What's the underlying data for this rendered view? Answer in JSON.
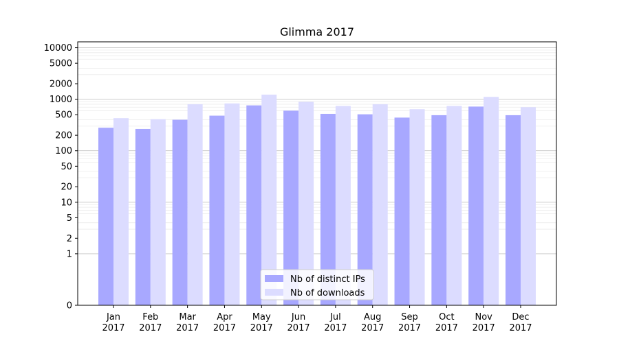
{
  "chart_data": {
    "type": "bar",
    "title": "Glimma 2017",
    "xlabel": "",
    "ylabel": "",
    "y_scale": "symlog",
    "ylim": [
      0,
      13000
    ],
    "y_ticks": [
      0,
      1,
      2,
      5,
      10,
      20,
      50,
      100,
      200,
      500,
      1000,
      2000,
      5000,
      10000
    ],
    "grid": "horizontal",
    "legend_position": "bottom-center",
    "categories": [
      [
        "Jan",
        "2017"
      ],
      [
        "Feb",
        "2017"
      ],
      [
        "Mar",
        "2017"
      ],
      [
        "Apr",
        "2017"
      ],
      [
        "May",
        "2017"
      ],
      [
        "Jun",
        "2017"
      ],
      [
        "Jul",
        "2017"
      ],
      [
        "Aug",
        "2017"
      ],
      [
        "Sep",
        "2017"
      ],
      [
        "Oct",
        "2017"
      ],
      [
        "Nov",
        "2017"
      ],
      [
        "Dec",
        "2017"
      ]
    ],
    "series": [
      {
        "name": "Nb of distinct IPs",
        "color": "#a8a8ff",
        "values": [
          280,
          265,
          400,
          480,
          760,
          600,
          520,
          510,
          440,
          490,
          720,
          490
        ]
      },
      {
        "name": "Nb of downloads",
        "color": "#dcdcff",
        "values": [
          430,
          410,
          800,
          830,
          1230,
          890,
          740,
          800,
          640,
          740,
          1110,
          700
        ]
      }
    ]
  }
}
